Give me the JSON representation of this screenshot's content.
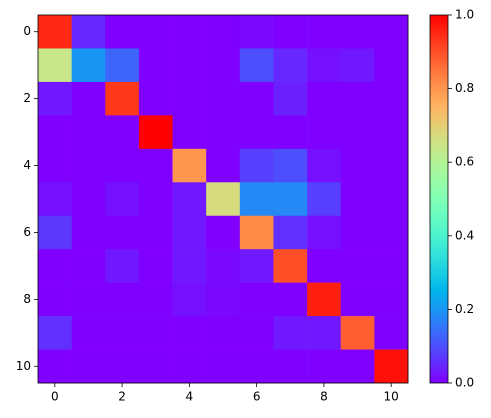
{
  "chart_data": {
    "type": "heatmap",
    "colormap": "rainbow",
    "z": [
      [
        0.95,
        0.05,
        0,
        0,
        0,
        0,
        0.01,
        0,
        0,
        0,
        0
      ],
      [
        0.64,
        0.2,
        0.13,
        0,
        0,
        0,
        0.1,
        0.05,
        0.02,
        0.03,
        0
      ],
      [
        0.03,
        0,
        0.93,
        0,
        0,
        0,
        0,
        0.04,
        0,
        0,
        0
      ],
      [
        0,
        0,
        0,
        1.0,
        0,
        0,
        0,
        0,
        0,
        0,
        0
      ],
      [
        0,
        0,
        0,
        0,
        0.8,
        0,
        0.08,
        0.1,
        0.02,
        0,
        0
      ],
      [
        0.02,
        0,
        0.02,
        0,
        0.03,
        0.67,
        0.18,
        0.18,
        0.08,
        0,
        0
      ],
      [
        0.07,
        0,
        0,
        0,
        0.03,
        0,
        0.82,
        0.06,
        0.02,
        0,
        0
      ],
      [
        0,
        0,
        0.03,
        0,
        0.03,
        0.01,
        0.03,
        0.9,
        0,
        0,
        0
      ],
      [
        0,
        0,
        0,
        0,
        0.02,
        0.01,
        0,
        0,
        0.96,
        0,
        0
      ],
      [
        0.06,
        0,
        0,
        0,
        0,
        0,
        0,
        0.03,
        0.03,
        0.88,
        0
      ],
      [
        0,
        0,
        0,
        0,
        0,
        0,
        0,
        0,
        0,
        0,
        0.98
      ]
    ],
    "xlim": [
      -0.5,
      10.5
    ],
    "ylim": [
      10.5,
      -0.5
    ],
    "xticks": [
      0,
      2,
      4,
      6,
      8,
      10
    ],
    "yticks": [
      0,
      2,
      4,
      6,
      8,
      10
    ],
    "colorbar": {
      "lim": [
        0,
        1
      ],
      "ticks": [
        {
          "value": 0,
          "label": "0.0"
        },
        {
          "value": 0.2,
          "label": "0.2"
        },
        {
          "value": 0.4,
          "label": "0.4"
        },
        {
          "value": 0.6,
          "label": "0.6"
        },
        {
          "value": 0.8,
          "label": "0.8"
        },
        {
          "value": 1,
          "label": "1.0"
        }
      ]
    }
  }
}
